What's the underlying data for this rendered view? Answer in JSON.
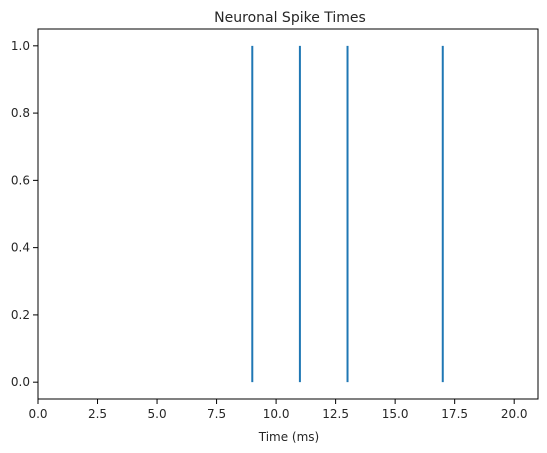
{
  "chart_data": {
    "type": "eventplot",
    "title": "Neuronal Spike Times",
    "xlabel": "Time (ms)",
    "ylabel": "",
    "xlim": [
      0,
      21
    ],
    "ylim": [
      -0.05,
      1.05
    ],
    "xticks": [
      "0.0",
      "2.5",
      "5.0",
      "7.5",
      "10.0",
      "12.5",
      "15.0",
      "17.5",
      "20.0"
    ],
    "yticks": [
      "0.0",
      "0.2",
      "0.4",
      "0.6",
      "0.8",
      "1.0"
    ],
    "spike_times": [
      9,
      11,
      13,
      17
    ],
    "spike_y_range": [
      0,
      1
    ],
    "line_color": "#1f77b4",
    "grid": false,
    "legend": "none"
  }
}
